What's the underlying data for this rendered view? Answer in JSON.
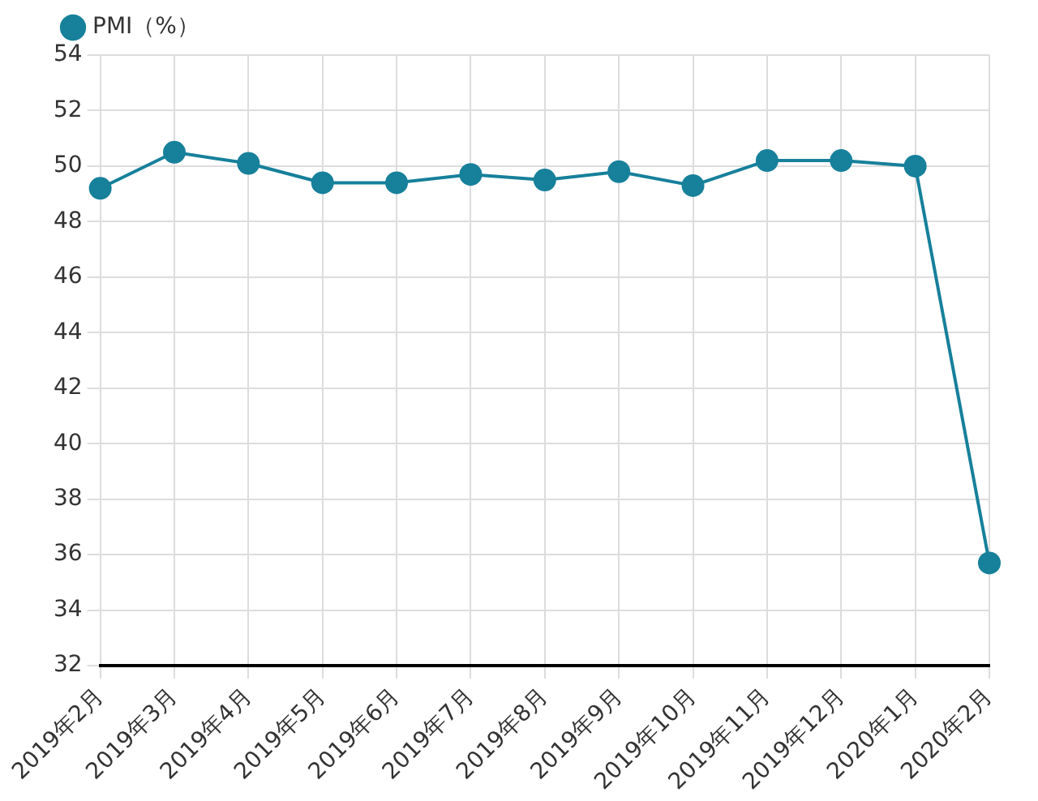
{
  "chart_data": {
    "type": "line",
    "categories": [
      "2019年2月",
      "2019年3月",
      "2019年4月",
      "2019年5月",
      "2019年6月",
      "2019年7月",
      "2019年8月",
      "2019年9月",
      "2019年10月",
      "2019年11月",
      "2019年12月",
      "2020年1月",
      "2020年2月"
    ],
    "series": [
      {
        "name": "PMI（%）",
        "color": "#17809b",
        "values": [
          49.2,
          50.5,
          50.1,
          49.4,
          49.4,
          49.7,
          49.5,
          49.8,
          49.3,
          50.2,
          50.2,
          50.0,
          35.7
        ]
      }
    ],
    "ylim": [
      32,
      54
    ],
    "yticks": [
      32,
      34,
      36,
      38,
      40,
      42,
      44,
      46,
      48,
      50,
      52,
      54
    ],
    "grid": true,
    "legend": "top left",
    "marker": "circle",
    "line_style": "solid"
  }
}
